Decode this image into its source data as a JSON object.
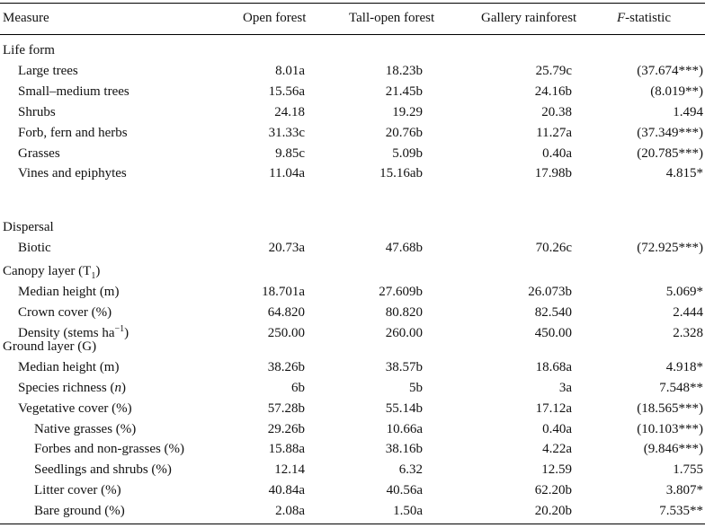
{
  "header": {
    "measure": "Measure",
    "open_forest": "Open forest",
    "tall_open_forest": "Tall-open forest",
    "gallery_rainforest": "Gallery rainforest",
    "f_letter": "F",
    "f_rest": "-statistic"
  },
  "sections": [
    {
      "title": "Life form",
      "rows": [
        {
          "label": "Large trees",
          "v1": "8.01a",
          "v2": "18.23b",
          "v3": "25.79c",
          "f": "(37.674***)"
        },
        {
          "label": "Small–medium trees",
          "v1": "15.56a",
          "v2": "21.45b",
          "v3": "24.16b",
          "f": "(8.019**)"
        },
        {
          "label": "Shrubs",
          "v1": "24.18",
          "v2": "19.29",
          "v3": "20.38",
          "f": "1.494"
        },
        {
          "label": "Forb, fern and herbs",
          "v1": "31.33c",
          "v2": "20.76b",
          "v3": "11.27a",
          "f": "(37.349***)"
        },
        {
          "label": "Grasses",
          "v1": "9.85c",
          "v2": "5.09b",
          "v3": "0.40a",
          "f": "(20.785***)"
        },
        {
          "label": "Vines and epiphytes",
          "v1": "11.04a",
          "v2": "15.16ab",
          "v3": "17.98b",
          "f": "4.815*"
        }
      ]
    },
    {
      "title": "Dispersal",
      "rows": [
        {
          "label": "Biotic",
          "v1": "20.73a",
          "v2": "47.68b",
          "v3": "70.26c",
          "f": "(72.925***)"
        }
      ]
    },
    {
      "title": "Canopy layer (T",
      "title_sub": "1",
      "title_end": ")",
      "rows": [
        {
          "label": "Median height (m)",
          "v1": "18.701a",
          "v2": "27.609b",
          "v3": "26.073b",
          "f": "5.069*"
        },
        {
          "label": "Crown cover (%)",
          "v1": "64.820",
          "v2": "80.820",
          "v3": "82.540",
          "f": "2.444"
        },
        {
          "label": "Density (stems ha",
          "label_sup": "−1",
          "label_end": ")",
          "v1": "250.00",
          "v2": "260.00",
          "v3": "450.00",
          "f": "2.328"
        }
      ]
    },
    {
      "title": "Ground layer (G)",
      "rows": [
        {
          "label": "Median height (m)",
          "v1": "38.26b",
          "v2": "38.57b",
          "v3": "18.68a",
          "f": "4.918*"
        },
        {
          "label": "Species richness (",
          "label_ital": "n",
          "label_end": ")",
          "v1": "6b",
          "v2": "5b",
          "v3": "3a",
          "f": "7.548**"
        },
        {
          "label": "Vegetative cover (%)",
          "v1": "57.28b",
          "v2": "55.14b",
          "v3": "17.12a",
          "f": "(18.565***)"
        },
        {
          "label": "Native grasses (%)",
          "indent": 2,
          "v1": "29.26b",
          "v2": "10.66a",
          "v3": "0.40a",
          "f": "(10.103***)"
        },
        {
          "label": "Forbes and non-grasses (%)",
          "indent": 2,
          "v1": "15.88a",
          "v2": "38.16b",
          "v3": "4.22a",
          "f": "(9.846***)"
        },
        {
          "label": "Seedlings and shrubs (%)",
          "indent": 2,
          "v1": "12.14",
          "v2": "6.32",
          "v3": "12.59",
          "f": "1.755"
        },
        {
          "label": "Litter cover (%)",
          "indent": 2,
          "v1": "40.84a",
          "v2": "40.56a",
          "v3": "62.20b",
          "f": "3.807*"
        },
        {
          "label": "Bare ground (%)",
          "indent": 2,
          "v1": "2.08a",
          "v2": "1.50a",
          "v3": "20.20b",
          "f": "7.535**"
        }
      ]
    }
  ]
}
